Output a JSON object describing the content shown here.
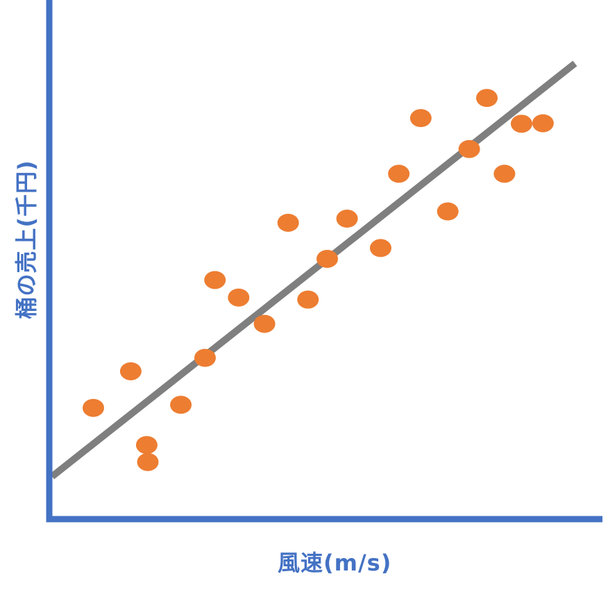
{
  "chart_data": {
    "type": "scatter",
    "title": "",
    "xlabel": "風速(m/s)",
    "ylabel": "桶の売上(千円)",
    "xlim": [
      0,
      100
    ],
    "ylim": [
      0,
      100
    ],
    "ticks_shown": false,
    "grid": false,
    "colors": {
      "axis": "#4472C4",
      "points": "#ED7D31",
      "trend": "#7F7F7F"
    },
    "series": [
      {
        "x": [
          7.5,
          17.2,
          14.3,
          17.4,
          23.4,
          27.8,
          29.6,
          33.9,
          38.6,
          42.9,
          46.5,
          50.0,
          53.6,
          59.7,
          63.0,
          67.0,
          71.9,
          75.8,
          79.0,
          82.2,
          85.3,
          89.2
        ],
        "y": [
          20.9,
          13.7,
          28.0,
          10.4,
          21.5,
          30.6,
          45.7,
          42.3,
          37.2,
          56.8,
          41.9,
          49.8,
          57.6,
          51.9,
          66.3,
          77.1,
          59.0,
          71.1,
          81.0,
          66.3,
          76.0,
          76.1
        ]
      }
    ],
    "trendline": {
      "x": [
        0,
        95.0
      ],
      "y": [
        7.6,
        87.7
      ]
    }
  }
}
